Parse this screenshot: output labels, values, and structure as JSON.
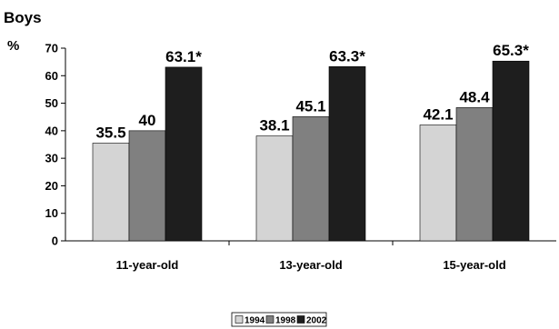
{
  "chart_data": {
    "type": "bar",
    "title": "Boys",
    "ylabel": "%",
    "xlabel": "",
    "ylim": [
      0,
      70
    ],
    "yticks": [
      0,
      10,
      20,
      30,
      40,
      50,
      60,
      70
    ],
    "grid": false,
    "legend_position": "bottom",
    "categories": [
      "11-year-old",
      "13-year-old",
      "15-year-old"
    ],
    "series": [
      {
        "name": "1994",
        "color": "#d4d4d4",
        "values": [
          35.5,
          38.1,
          42.1
        ],
        "labels": [
          "35.5",
          "38.1",
          "42.1"
        ]
      },
      {
        "name": "1998",
        "color": "#808080",
        "values": [
          40,
          45.1,
          48.4
        ],
        "labels": [
          "40",
          "45.1",
          "48.4"
        ]
      },
      {
        "name": "2002",
        "color": "#1e1e1e",
        "values": [
          63.1,
          63.3,
          65.3
        ],
        "labels": [
          "63.1*",
          "63.3*",
          "65.3*"
        ]
      }
    ]
  }
}
